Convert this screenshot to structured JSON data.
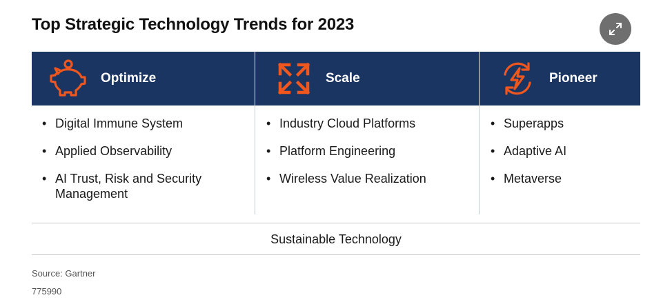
{
  "title": "Top Strategic Technology Trends for 2023",
  "expand_button": {
    "icon": "expand-icon"
  },
  "colors": {
    "header_bg": "#1b3563",
    "accent": "#f0571e",
    "header_text": "#ffffff"
  },
  "columns": [
    {
      "label": "Optimize",
      "icon": "piggy-bank-icon",
      "items": [
        "Digital Immune System",
        "Applied Observability",
        "AI Trust, Risk and Security Management"
      ]
    },
    {
      "label": "Scale",
      "icon": "expand-arrows-icon",
      "items": [
        "Industry Cloud Platforms",
        "Platform Engineering",
        "Wireless Value Realization"
      ]
    },
    {
      "label": "Pioneer",
      "icon": "lightning-cycle-icon",
      "items": [
        "Superapps",
        "Adaptive AI",
        "Metaverse"
      ]
    }
  ],
  "foundation": "Sustainable Technology",
  "source": "Source: Gartner",
  "code": "775990"
}
